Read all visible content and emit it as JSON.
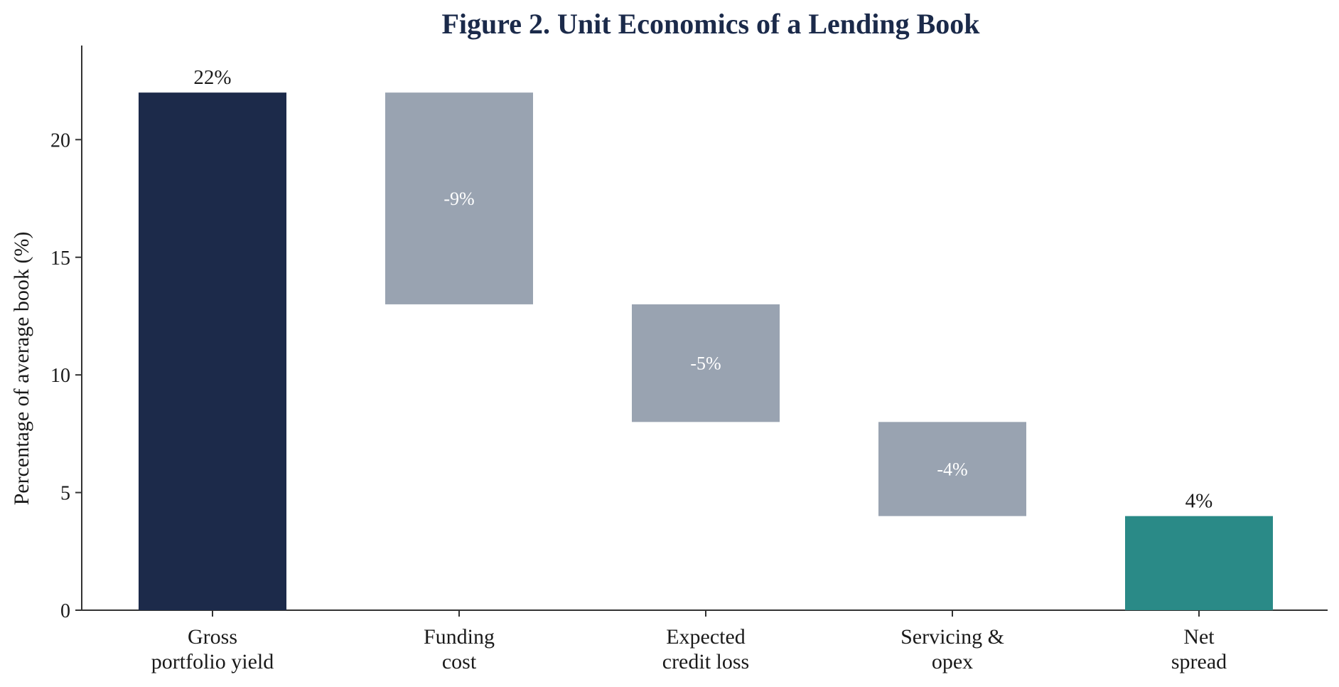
{
  "chart_data": {
    "type": "bar",
    "subtype": "waterfall",
    "title": "Figure 2. Unit Economics of a Lending Book",
    "ylabel": "Percentage of average book (%)",
    "xlabel": "",
    "ylim": [
      0,
      24
    ],
    "yticks": [
      0,
      5,
      10,
      15,
      20
    ],
    "grid": false,
    "categories": [
      [
        "Gross",
        "portfolio yield"
      ],
      [
        "Funding",
        "cost"
      ],
      [
        "Expected",
        "credit loss"
      ],
      [
        "Servicing &",
        "opex"
      ],
      [
        "Net",
        "spread"
      ]
    ],
    "bars": [
      {
        "kind": "total",
        "start": 0,
        "end": 22,
        "label": "22%",
        "color": "#1c2a4a"
      },
      {
        "kind": "delta",
        "start": 22,
        "end": 13,
        "label": "-9%",
        "color": "#99a3b1"
      },
      {
        "kind": "delta",
        "start": 13,
        "end": 8,
        "label": "-5%",
        "color": "#99a3b1"
      },
      {
        "kind": "delta",
        "start": 8,
        "end": 4,
        "label": "-4%",
        "color": "#99a3b1"
      },
      {
        "kind": "total",
        "start": 0,
        "end": 4,
        "label": "4%",
        "color": "#2a8a87"
      }
    ]
  }
}
